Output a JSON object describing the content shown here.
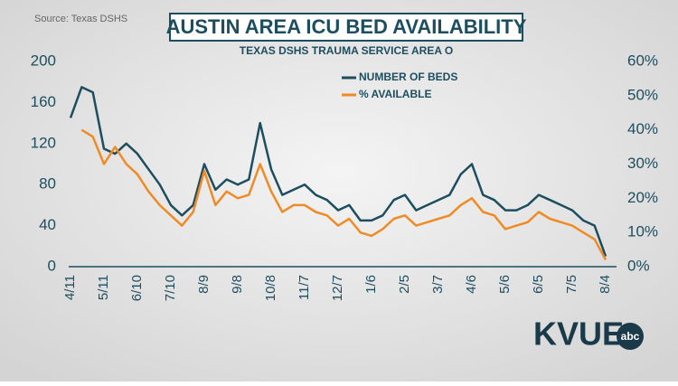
{
  "chart_data": {
    "type": "line",
    "source": "Source: Texas DSHS",
    "title": "AUSTIN AREA ICU BED AVAILABILITY",
    "subtitle": "TEXAS DSHS TRAUMA SERVICE AREA O",
    "logo": "KVUE",
    "logo_badge": "abc",
    "categories": [
      "4/11",
      null,
      null,
      "5/11",
      null,
      null,
      "6/10",
      null,
      null,
      "7/10",
      null,
      null,
      "8/9",
      null,
      null,
      "9/8",
      null,
      null,
      "10/8",
      null,
      null,
      "11/7",
      null,
      null,
      "12/7",
      null,
      null,
      "1/6",
      null,
      null,
      "2/5",
      null,
      null,
      "3/7",
      null,
      null,
      "4/6",
      null,
      null,
      "5/6",
      null,
      null,
      "6/5",
      null,
      null,
      "7/5",
      null,
      null,
      "8/4"
    ],
    "series": [
      {
        "name": "NUMBER OF BEDS",
        "color": "#1d4e5f",
        "axis": "y",
        "values": [
          145,
          175,
          170,
          115,
          110,
          120,
          110,
          95,
          80,
          60,
          50,
          60,
          100,
          75,
          85,
          80,
          85,
          140,
          95,
          70,
          75,
          80,
          70,
          65,
          55,
          60,
          45,
          45,
          50,
          65,
          70,
          55,
          60,
          65,
          70,
          90,
          100,
          70,
          65,
          55,
          55,
          60,
          70,
          65,
          60,
          55,
          45,
          40,
          10
        ]
      },
      {
        "name": "% AVAILABLE",
        "color": "#f08a24",
        "axis": "y2",
        "values": [
          null,
          40,
          38,
          30,
          35,
          30,
          27,
          22,
          18,
          15,
          12,
          16,
          28,
          18,
          22,
          20,
          21,
          30,
          22,
          16,
          18,
          18,
          16,
          15,
          12,
          14,
          10,
          9,
          11,
          14,
          15,
          12,
          13,
          14,
          15,
          18,
          20,
          16,
          15,
          11,
          12,
          13,
          16,
          14,
          13,
          12,
          10,
          8,
          2
        ]
      }
    ],
    "ylim": [
      0,
      200
    ],
    "yticks": [
      0,
      40,
      80,
      120,
      160,
      200
    ],
    "y2lim": [
      0,
      60
    ],
    "y2ticks": [
      {
        "value": 0,
        "label": "0%"
      },
      {
        "value": 10,
        "label": "10%"
      },
      {
        "value": 20,
        "label": "20%"
      },
      {
        "value": 30,
        "label": "30%"
      },
      {
        "value": 40,
        "label": "40%"
      },
      {
        "value": 50,
        "label": "50%"
      },
      {
        "value": 60,
        "label": "60%"
      }
    ],
    "grid": false
  }
}
